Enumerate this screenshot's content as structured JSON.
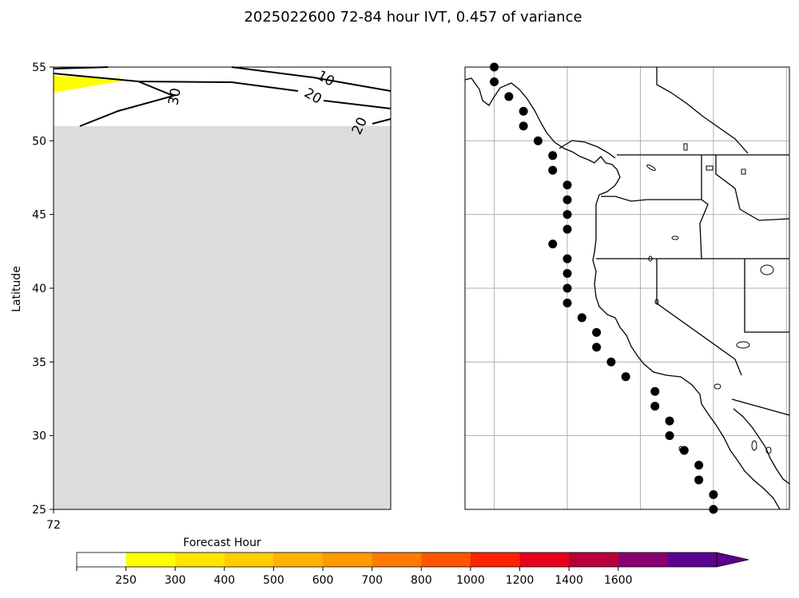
{
  "figure": {
    "title": "2025022600 72-84 hour IVT, 0.457 of variance"
  },
  "chart_data": [
    {
      "type": "contour",
      "panel": "left",
      "ylabel": "Latitude",
      "xlabel": "",
      "ylim": [
        25,
        55
      ],
      "yticks": [
        25,
        30,
        35,
        40,
        45,
        50,
        55
      ],
      "xticks": [
        "72"
      ],
      "grid": false,
      "masked_region": {
        "description_color": "#dcdcdc",
        "lat_max": 51
      },
      "filled_regions": [
        {
          "level": "250-300",
          "color": "#ffff00"
        }
      ],
      "contour_labels": [
        "10",
        "20",
        "30",
        "20"
      ],
      "colors": {
        "mask": "#dcdcdc",
        "line": "#000000"
      }
    },
    {
      "type": "scatter",
      "panel": "right",
      "grid": true,
      "marker_color": "#000000",
      "points_lon_lat": [
        [
          -130.0,
          55.0
        ],
        [
          -130.0,
          54.0
        ],
        [
          -129.0,
          53.0
        ],
        [
          -128.0,
          52.0
        ],
        [
          -128.0,
          51.0
        ],
        [
          -127.0,
          50.0
        ],
        [
          -126.0,
          49.0
        ],
        [
          -126.0,
          48.0
        ],
        [
          -125.0,
          47.0
        ],
        [
          -125.0,
          46.0
        ],
        [
          -125.0,
          45.0
        ],
        [
          -125.0,
          44.0
        ],
        [
          -126.0,
          43.0
        ],
        [
          -125.0,
          42.0
        ],
        [
          -125.0,
          41.0
        ],
        [
          -125.0,
          40.0
        ],
        [
          -125.0,
          39.0
        ],
        [
          -124.0,
          38.0
        ],
        [
          -123.0,
          37.0
        ],
        [
          -123.0,
          36.0
        ],
        [
          -122.0,
          35.0
        ],
        [
          -121.0,
          34.0
        ],
        [
          -119.0,
          33.0
        ],
        [
          -119.0,
          32.0
        ],
        [
          -118.0,
          31.0
        ],
        [
          -118.0,
          30.0
        ],
        [
          -117.0,
          29.0
        ],
        [
          -116.0,
          28.0
        ],
        [
          -116.0,
          27.0
        ],
        [
          -115.0,
          26.0
        ],
        [
          -115.0,
          25.0
        ]
      ]
    }
  ],
  "colorbar": {
    "label": "Forecast Hour",
    "tick_labels": [
      "250",
      "300",
      "400",
      "500",
      "600",
      "700",
      "800",
      "1000",
      "1200",
      "1400",
      "1600"
    ],
    "colors": [
      "#ffffff",
      "#ffff00",
      "#ffe600",
      "#ffcc00",
      "#ffb300",
      "#ff9900",
      "#ff7a00",
      "#ff5500",
      "#ff2200",
      "#e8001a",
      "#b8003a",
      "#8a0070",
      "#5c0090"
    ],
    "extend": "max"
  }
}
